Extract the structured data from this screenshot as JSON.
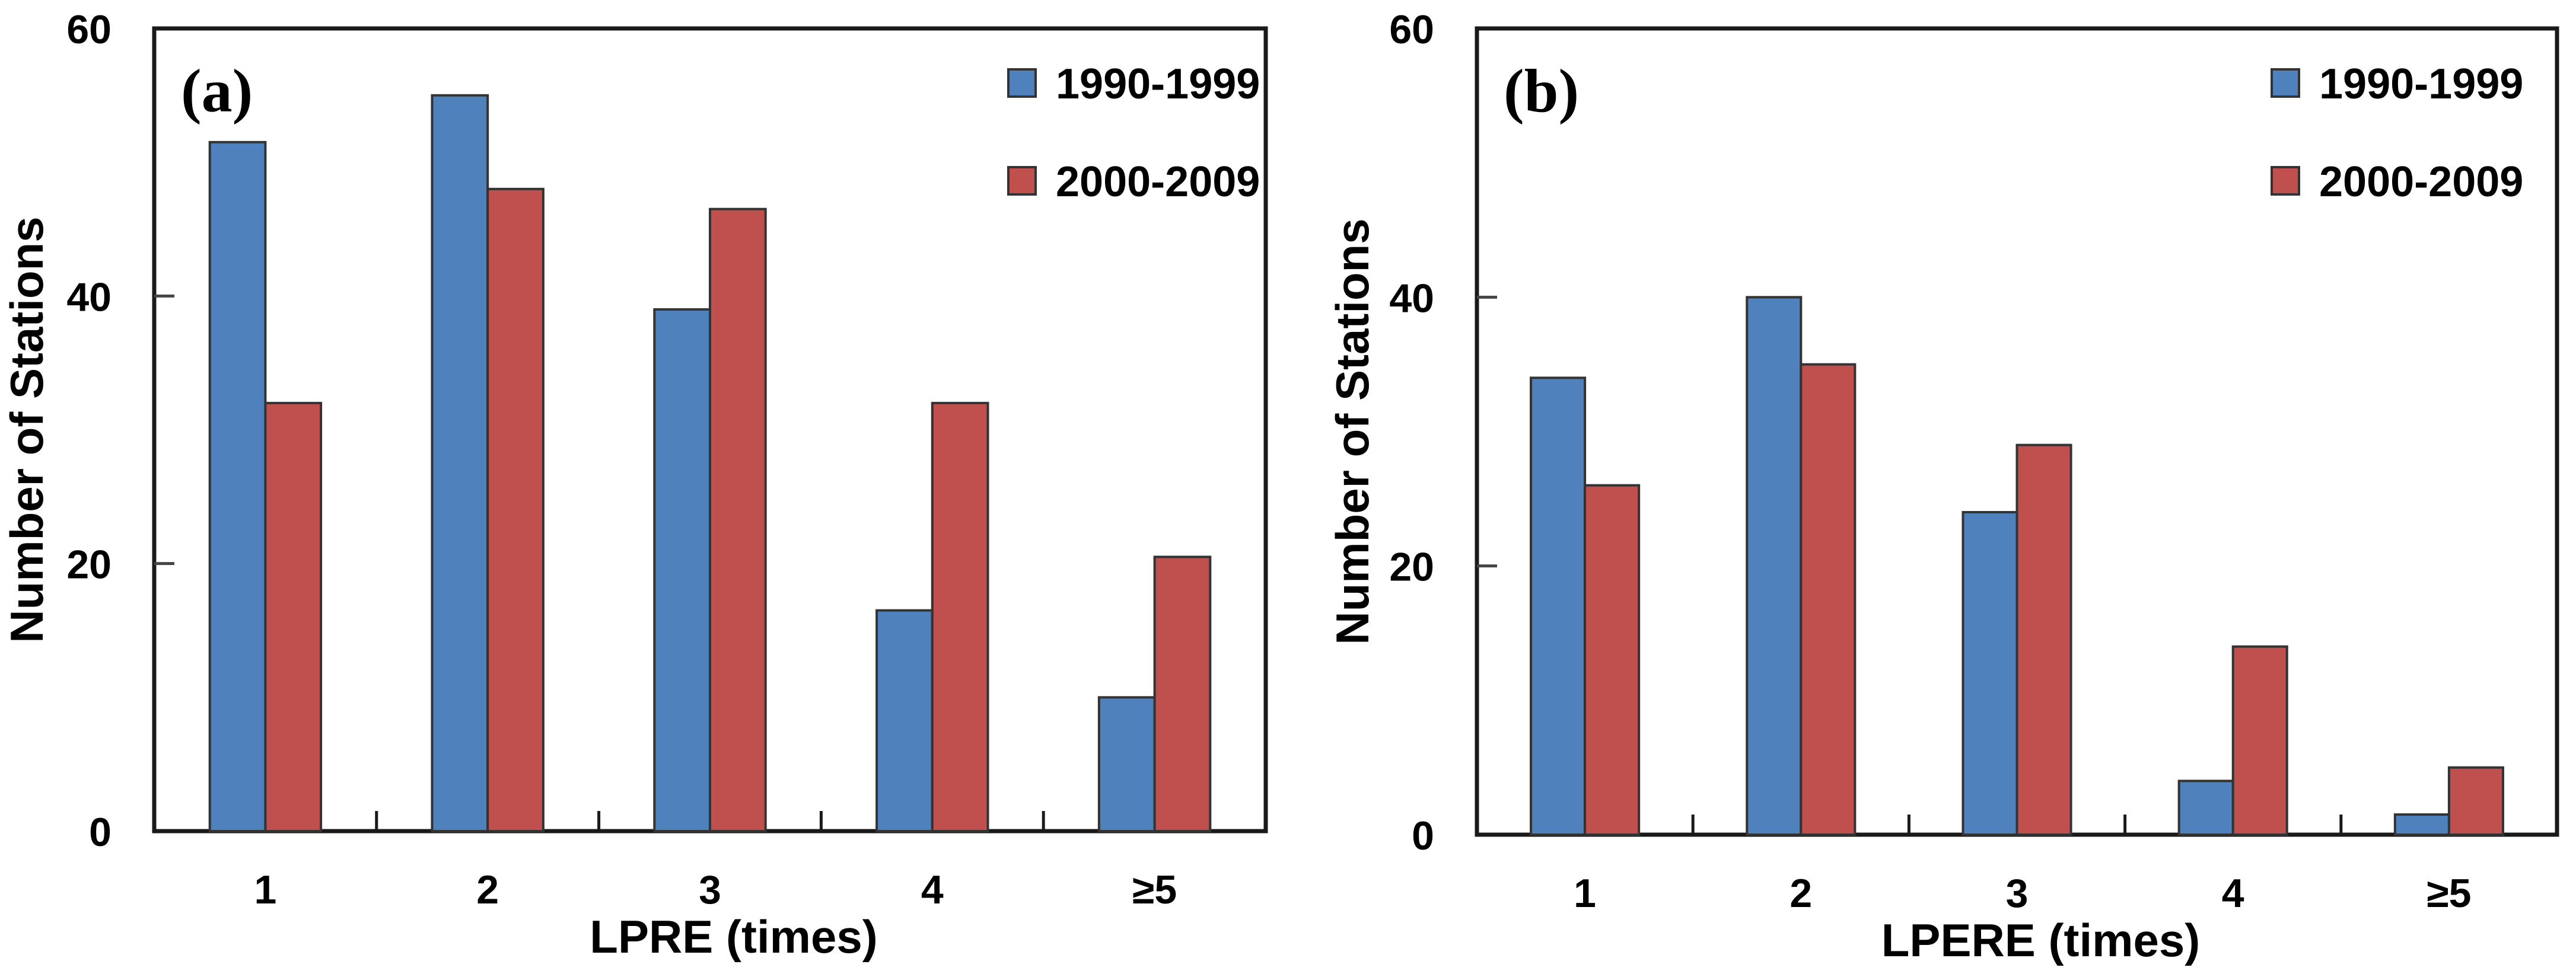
{
  "figure": {
    "background": "#ffffff",
    "frame_color": "#1a1a1a",
    "bar_border_color": "#333333",
    "legend_position": "top-right-inside"
  },
  "chart_data": [
    {
      "type": "bar",
      "panel_label": "(a)",
      "title": "",
      "xlabel": "LPRE (times)",
      "ylabel": "Number of Stations",
      "categories": [
        "1",
        "2",
        "3",
        "4",
        "≥5"
      ],
      "y_ticks": [
        0,
        20,
        40,
        60
      ],
      "ylim": [
        0,
        60
      ],
      "grid": false,
      "legend_position": "top-right-inside",
      "series": [
        {
          "name": "1990-1999",
          "color": "#4F81BD",
          "values": [
            51.5,
            55,
            39,
            16.5,
            10
          ]
        },
        {
          "name": "2000-2009",
          "color": "#C0504D",
          "values": [
            32,
            48,
            46.5,
            32,
            20.5
          ]
        }
      ]
    },
    {
      "type": "bar",
      "panel_label": "(b)",
      "title": "",
      "xlabel": "LPERE (times)",
      "ylabel": "Number of Stations",
      "categories": [
        "1",
        "2",
        "3",
        "4",
        "≥5"
      ],
      "y_ticks": [
        0,
        20,
        40,
        60
      ],
      "ylim": [
        0,
        60
      ],
      "grid": false,
      "legend_position": "top-right-inside",
      "series": [
        {
          "name": "1990-1999",
          "color": "#4F81BD",
          "values": [
            34,
            40,
            24,
            4,
            1.5
          ]
        },
        {
          "name": "2000-2009",
          "color": "#C0504D",
          "values": [
            26,
            35,
            29,
            14,
            5
          ]
        }
      ]
    }
  ]
}
